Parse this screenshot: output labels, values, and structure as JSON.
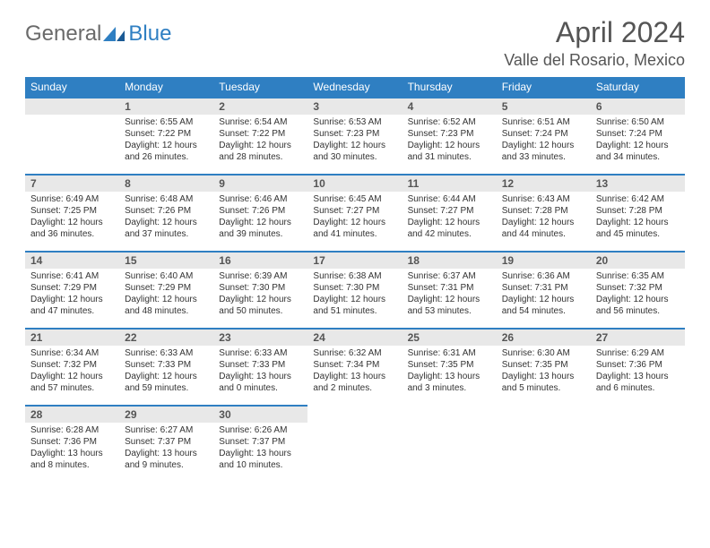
{
  "logo": {
    "part1": "General",
    "part2": "Blue"
  },
  "title": "April 2024",
  "location": "Valle del Rosario, Mexico",
  "colors": {
    "header_bg": "#2f7fc2",
    "header_text": "#ffffff",
    "daybar_bg": "#e8e8e8",
    "daybar_border": "#2f7fc2",
    "text": "#333333",
    "title_text": "#555555",
    "logo_gray": "#6a6a6a",
    "logo_blue": "#2f7fc2",
    "page_bg": "#ffffff"
  },
  "typography": {
    "title_fontsize": 32,
    "location_fontsize": 18,
    "weekday_fontsize": 12,
    "daynum_fontsize": 12,
    "body_fontsize": 10
  },
  "weekdays": [
    "Sunday",
    "Monday",
    "Tuesday",
    "Wednesday",
    "Thursday",
    "Friday",
    "Saturday"
  ],
  "weeks": [
    [
      null,
      {
        "n": "1",
        "sunrise": "6:55 AM",
        "sunset": "7:22 PM",
        "dl": "12 hours and 26 minutes."
      },
      {
        "n": "2",
        "sunrise": "6:54 AM",
        "sunset": "7:22 PM",
        "dl": "12 hours and 28 minutes."
      },
      {
        "n": "3",
        "sunrise": "6:53 AM",
        "sunset": "7:23 PM",
        "dl": "12 hours and 30 minutes."
      },
      {
        "n": "4",
        "sunrise": "6:52 AM",
        "sunset": "7:23 PM",
        "dl": "12 hours and 31 minutes."
      },
      {
        "n": "5",
        "sunrise": "6:51 AM",
        "sunset": "7:24 PM",
        "dl": "12 hours and 33 minutes."
      },
      {
        "n": "6",
        "sunrise": "6:50 AM",
        "sunset": "7:24 PM",
        "dl": "12 hours and 34 minutes."
      }
    ],
    [
      {
        "n": "7",
        "sunrise": "6:49 AM",
        "sunset": "7:25 PM",
        "dl": "12 hours and 36 minutes."
      },
      {
        "n": "8",
        "sunrise": "6:48 AM",
        "sunset": "7:26 PM",
        "dl": "12 hours and 37 minutes."
      },
      {
        "n": "9",
        "sunrise": "6:46 AM",
        "sunset": "7:26 PM",
        "dl": "12 hours and 39 minutes."
      },
      {
        "n": "10",
        "sunrise": "6:45 AM",
        "sunset": "7:27 PM",
        "dl": "12 hours and 41 minutes."
      },
      {
        "n": "11",
        "sunrise": "6:44 AM",
        "sunset": "7:27 PM",
        "dl": "12 hours and 42 minutes."
      },
      {
        "n": "12",
        "sunrise": "6:43 AM",
        "sunset": "7:28 PM",
        "dl": "12 hours and 44 minutes."
      },
      {
        "n": "13",
        "sunrise": "6:42 AM",
        "sunset": "7:28 PM",
        "dl": "12 hours and 45 minutes."
      }
    ],
    [
      {
        "n": "14",
        "sunrise": "6:41 AM",
        "sunset": "7:29 PM",
        "dl": "12 hours and 47 minutes."
      },
      {
        "n": "15",
        "sunrise": "6:40 AM",
        "sunset": "7:29 PM",
        "dl": "12 hours and 48 minutes."
      },
      {
        "n": "16",
        "sunrise": "6:39 AM",
        "sunset": "7:30 PM",
        "dl": "12 hours and 50 minutes."
      },
      {
        "n": "17",
        "sunrise": "6:38 AM",
        "sunset": "7:30 PM",
        "dl": "12 hours and 51 minutes."
      },
      {
        "n": "18",
        "sunrise": "6:37 AM",
        "sunset": "7:31 PM",
        "dl": "12 hours and 53 minutes."
      },
      {
        "n": "19",
        "sunrise": "6:36 AM",
        "sunset": "7:31 PM",
        "dl": "12 hours and 54 minutes."
      },
      {
        "n": "20",
        "sunrise": "6:35 AM",
        "sunset": "7:32 PM",
        "dl": "12 hours and 56 minutes."
      }
    ],
    [
      {
        "n": "21",
        "sunrise": "6:34 AM",
        "sunset": "7:32 PM",
        "dl": "12 hours and 57 minutes."
      },
      {
        "n": "22",
        "sunrise": "6:33 AM",
        "sunset": "7:33 PM",
        "dl": "12 hours and 59 minutes."
      },
      {
        "n": "23",
        "sunrise": "6:33 AM",
        "sunset": "7:33 PM",
        "dl": "13 hours and 0 minutes."
      },
      {
        "n": "24",
        "sunrise": "6:32 AM",
        "sunset": "7:34 PM",
        "dl": "13 hours and 2 minutes."
      },
      {
        "n": "25",
        "sunrise": "6:31 AM",
        "sunset": "7:35 PM",
        "dl": "13 hours and 3 minutes."
      },
      {
        "n": "26",
        "sunrise": "6:30 AM",
        "sunset": "7:35 PM",
        "dl": "13 hours and 5 minutes."
      },
      {
        "n": "27",
        "sunrise": "6:29 AM",
        "sunset": "7:36 PM",
        "dl": "13 hours and 6 minutes."
      }
    ],
    [
      {
        "n": "28",
        "sunrise": "6:28 AM",
        "sunset": "7:36 PM",
        "dl": "13 hours and 8 minutes."
      },
      {
        "n": "29",
        "sunrise": "6:27 AM",
        "sunset": "7:37 PM",
        "dl": "13 hours and 9 minutes."
      },
      {
        "n": "30",
        "sunrise": "6:26 AM",
        "sunset": "7:37 PM",
        "dl": "13 hours and 10 minutes."
      },
      null,
      null,
      null,
      null
    ]
  ],
  "labels": {
    "sunrise": "Sunrise:",
    "sunset": "Sunset:",
    "daylight": "Daylight:"
  }
}
